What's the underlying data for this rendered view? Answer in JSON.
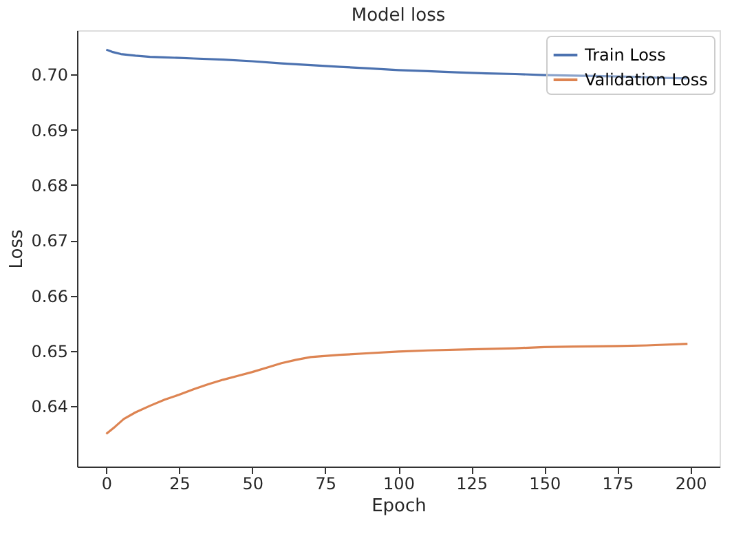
{
  "chart_data": {
    "type": "line",
    "title": "Model loss",
    "xlabel": "Epoch",
    "ylabel": "Loss",
    "series": [
      {
        "name": "Train Loss",
        "color": "#4c72b0",
        "x": [
          0,
          2,
          5,
          10,
          15,
          20,
          25,
          30,
          40,
          50,
          60,
          70,
          80,
          90,
          100,
          110,
          120,
          130,
          140,
          150,
          160,
          170,
          180,
          190,
          199
        ],
        "values": [
          0.7045,
          0.7041,
          0.7037,
          0.7034,
          0.7032,
          0.7031,
          0.703,
          0.7029,
          0.7027,
          0.7024,
          0.702,
          0.7017,
          0.7014,
          0.7011,
          0.7008,
          0.7006,
          0.7004,
          0.7002,
          0.7001,
          0.6999,
          0.6998,
          0.6997,
          0.6996,
          0.6994,
          0.6993
        ]
      },
      {
        "name": "Validation Loss",
        "color": "#dd8452",
        "x": [
          0,
          3,
          6,
          10,
          15,
          20,
          25,
          30,
          35,
          40,
          45,
          50,
          55,
          60,
          65,
          70,
          80,
          90,
          100,
          110,
          125,
          140,
          150,
          160,
          175,
          185,
          199
        ],
        "values": [
          0.635,
          0.6363,
          0.6377,
          0.6389,
          0.6401,
          0.6412,
          0.6421,
          0.6431,
          0.644,
          0.6448,
          0.6455,
          0.6462,
          0.647,
          0.6478,
          0.6484,
          0.6489,
          0.6493,
          0.6496,
          0.6499,
          0.6501,
          0.6503,
          0.6505,
          0.6507,
          0.6508,
          0.6509,
          0.651,
          0.6513
        ]
      }
    ],
    "xlim": [
      -10,
      210
    ],
    "xticks": [
      0,
      25,
      50,
      75,
      100,
      125,
      150,
      175,
      200
    ],
    "ylim": [
      0.6291,
      0.708
    ],
    "yticks": [
      {
        "value": 0.64,
        "label": "0.64"
      },
      {
        "value": 0.65,
        "label": "0.65"
      },
      {
        "value": 0.66,
        "label": "0.66"
      },
      {
        "value": 0.67,
        "label": "0.67"
      },
      {
        "value": 0.68,
        "label": "0.68"
      },
      {
        "value": 0.69,
        "label": "0.69"
      },
      {
        "value": 0.7,
        "label": "0.70"
      }
    ],
    "grid": false,
    "legend": "top right",
    "marker": "none",
    "line_style": "solid"
  }
}
